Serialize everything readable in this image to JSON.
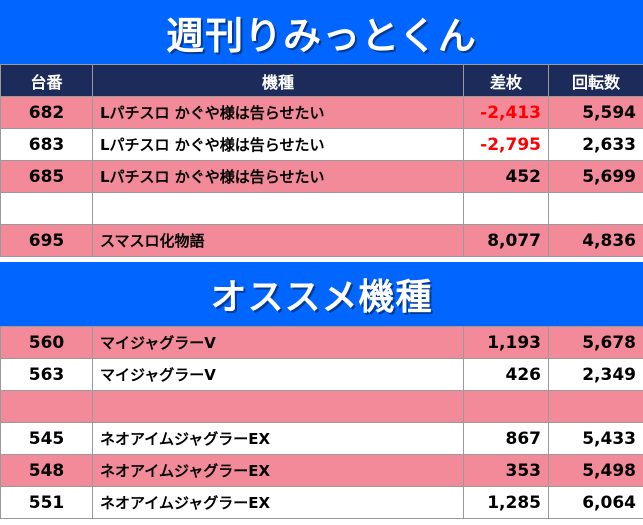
{
  "banner_top": "週刊りみっとくん",
  "banner_mid": "オススメ機種",
  "headers": [
    "台番",
    "機種",
    "差枚",
    "回転数"
  ],
  "colors": {
    "banner": "#0066ff",
    "header": "#1c2b5a",
    "pink_row": "#f28a99",
    "negative": "#ff0000"
  },
  "table1": [
    {
      "no": "682",
      "name": "Lパチスロ かぐや様は告らせたい",
      "diff": "-2,413",
      "spins": "5,594",
      "color": "pink",
      "neg": true
    },
    {
      "no": "683",
      "name": "Lパチスロ かぐや様は告らせたい",
      "diff": "-2,795",
      "spins": "2,633",
      "color": "white",
      "neg": true
    },
    {
      "no": "685",
      "name": "Lパチスロ かぐや様は告らせたい",
      "diff": "452",
      "spins": "5,699",
      "color": "pink",
      "neg": false
    },
    {
      "no": "",
      "name": "",
      "diff": "",
      "spins": "",
      "color": "blank",
      "neg": false
    },
    {
      "no": "695",
      "name": "スマスロ化物語",
      "diff": "8,077",
      "spins": "4,836",
      "color": "pink",
      "neg": false
    }
  ],
  "table2": [
    {
      "no": "560",
      "name": "マイジャグラーV",
      "diff": "1,193",
      "spins": "5,678",
      "color": "pink",
      "neg": false
    },
    {
      "no": "563",
      "name": "マイジャグラーV",
      "diff": "426",
      "spins": "2,349",
      "color": "white",
      "neg": false
    },
    {
      "no": "",
      "name": "",
      "diff": "",
      "spins": "",
      "color": "pinkblank",
      "neg": false
    },
    {
      "no": "545",
      "name": "ネオアイムジャグラーEX",
      "diff": "867",
      "spins": "5,433",
      "color": "white",
      "neg": false
    },
    {
      "no": "548",
      "name": "ネオアイムジャグラーEX",
      "diff": "353",
      "spins": "5,498",
      "color": "pink",
      "neg": false
    },
    {
      "no": "551",
      "name": "ネオアイムジャグラーEX",
      "diff": "1,285",
      "spins": "6,064",
      "color": "white",
      "neg": false
    }
  ]
}
